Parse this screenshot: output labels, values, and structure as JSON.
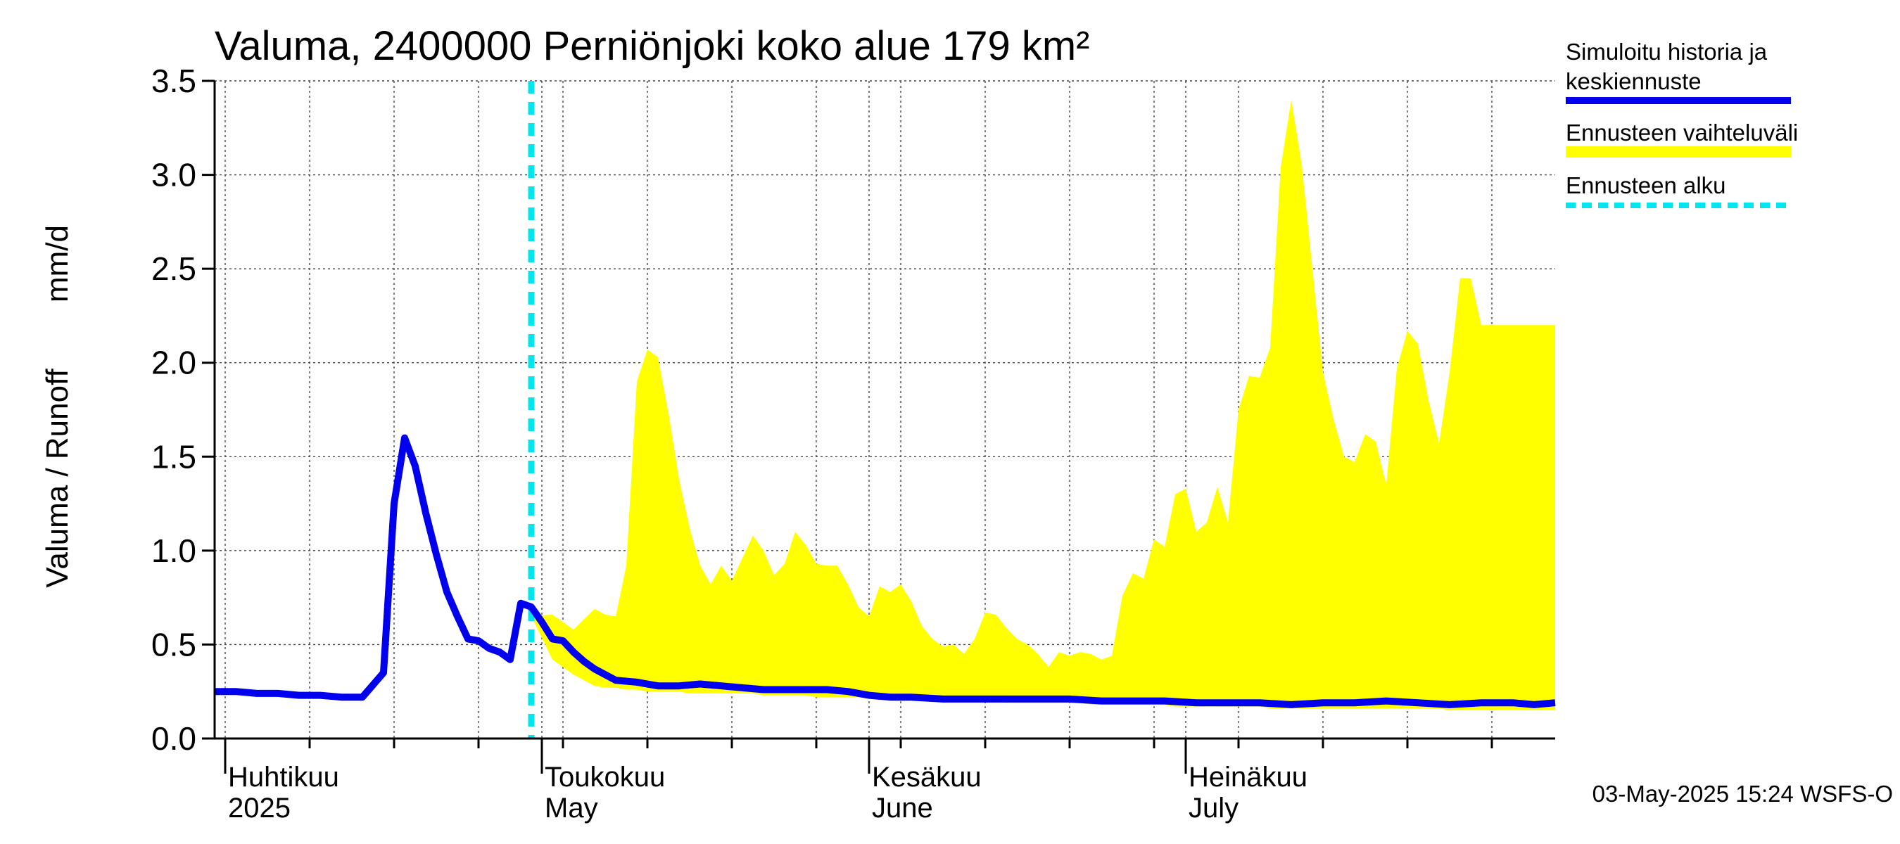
{
  "chart_data": {
    "type": "area",
    "title": "Valuma, 2400000 Perniönjoki koko alue 179 km²",
    "ylabel_left": "Valuma / Runoff",
    "ylabel_unit": "mm/d",
    "ylim": [
      0,
      3.5
    ],
    "yticks": [
      0.0,
      0.5,
      1.0,
      1.5,
      2.0,
      2.5,
      3.0,
      3.5
    ],
    "ytick_labels": [
      "0.0",
      "0.5",
      "1.0",
      "1.5",
      "2.0",
      "2.5",
      "3.0",
      "3.5"
    ],
    "xlim": [
      "2025-03-31",
      "2025-08-05"
    ],
    "grid": true,
    "month_labels": [
      {
        "date": "2025-04-01",
        "fi": "Huhtikuu",
        "en": "2025"
      },
      {
        "date": "2025-05-01",
        "fi": "Toukokuu",
        "en": "May"
      },
      {
        "date": "2025-06-01",
        "fi": "Kesäkuu",
        "en": "June"
      },
      {
        "date": "2025-07-01",
        "fi": "Heinäkuu",
        "en": "July"
      }
    ],
    "forecast_start": "2025-04-30",
    "series": [
      {
        "name": "Simuloitu historia ja keskiennuste",
        "color": "#0000ee",
        "x": [
          "2025-03-31",
          "2025-04-02",
          "2025-04-04",
          "2025-04-06",
          "2025-04-08",
          "2025-04-10",
          "2025-04-12",
          "2025-04-14",
          "2025-04-16",
          "2025-04-17",
          "2025-04-18",
          "2025-04-19",
          "2025-04-20",
          "2025-04-21",
          "2025-04-22",
          "2025-04-23",
          "2025-04-24",
          "2025-04-25",
          "2025-04-26",
          "2025-04-27",
          "2025-04-28",
          "2025-04-29",
          "2025-04-30",
          "2025-05-01",
          "2025-05-02",
          "2025-05-03",
          "2025-05-04",
          "2025-05-05",
          "2025-05-06",
          "2025-05-08",
          "2025-05-10",
          "2025-05-12",
          "2025-05-14",
          "2025-05-16",
          "2025-05-18",
          "2025-05-20",
          "2025-05-22",
          "2025-05-24",
          "2025-05-26",
          "2025-05-28",
          "2025-05-30",
          "2025-06-01",
          "2025-06-03",
          "2025-06-05",
          "2025-06-08",
          "2025-06-11",
          "2025-06-14",
          "2025-06-17",
          "2025-06-20",
          "2025-06-23",
          "2025-06-26",
          "2025-06-29",
          "2025-07-02",
          "2025-07-05",
          "2025-07-08",
          "2025-07-11",
          "2025-07-14",
          "2025-07-17",
          "2025-07-20",
          "2025-07-23",
          "2025-07-26",
          "2025-07-29",
          "2025-08-01",
          "2025-08-03",
          "2025-08-05"
        ],
        "values": [
          0.25,
          0.25,
          0.24,
          0.24,
          0.23,
          0.23,
          0.22,
          0.22,
          0.35,
          1.25,
          1.6,
          1.45,
          1.2,
          0.98,
          0.78,
          0.65,
          0.53,
          0.52,
          0.48,
          0.46,
          0.42,
          0.72,
          0.7,
          0.62,
          0.53,
          0.52,
          0.46,
          0.41,
          0.37,
          0.31,
          0.3,
          0.28,
          0.28,
          0.29,
          0.28,
          0.27,
          0.26,
          0.26,
          0.26,
          0.26,
          0.25,
          0.23,
          0.22,
          0.22,
          0.21,
          0.21,
          0.21,
          0.21,
          0.21,
          0.2,
          0.2,
          0.2,
          0.19,
          0.19,
          0.19,
          0.18,
          0.19,
          0.19,
          0.2,
          0.19,
          0.18,
          0.19,
          0.19,
          0.18,
          0.19
        ]
      },
      {
        "name": "Ennusteen vaihteluväli",
        "color": "#ffff00",
        "x": [
          "2025-04-30",
          "2025-05-02",
          "2025-05-04",
          "2025-05-06",
          "2025-05-07",
          "2025-05-08",
          "2025-05-09",
          "2025-05-10",
          "2025-05-11",
          "2025-05-12",
          "2025-05-13",
          "2025-05-14",
          "2025-05-15",
          "2025-05-16",
          "2025-05-17",
          "2025-05-18",
          "2025-05-19",
          "2025-05-20",
          "2025-05-21",
          "2025-05-22",
          "2025-05-23",
          "2025-05-24",
          "2025-05-25",
          "2025-05-26",
          "2025-05-27",
          "2025-05-28",
          "2025-05-29",
          "2025-05-30",
          "2025-05-31",
          "2025-06-01",
          "2025-06-02",
          "2025-06-03",
          "2025-06-04",
          "2025-06-05",
          "2025-06-06",
          "2025-06-07",
          "2025-06-08",
          "2025-06-09",
          "2025-06-10",
          "2025-06-11",
          "2025-06-12",
          "2025-06-13",
          "2025-06-14",
          "2025-06-15",
          "2025-06-16",
          "2025-06-17",
          "2025-06-18",
          "2025-06-19",
          "2025-06-20",
          "2025-06-21",
          "2025-06-22",
          "2025-06-23",
          "2025-06-24",
          "2025-06-25",
          "2025-06-26",
          "2025-06-27",
          "2025-06-28",
          "2025-06-29",
          "2025-06-30",
          "2025-07-01",
          "2025-07-02",
          "2025-07-03",
          "2025-07-04",
          "2025-07-05",
          "2025-07-06",
          "2025-07-07",
          "2025-07-08",
          "2025-07-09",
          "2025-07-10",
          "2025-07-11",
          "2025-07-12",
          "2025-07-13",
          "2025-07-14",
          "2025-07-15",
          "2025-07-16",
          "2025-07-17",
          "2025-07-18",
          "2025-07-19",
          "2025-07-20",
          "2025-07-21",
          "2025-07-22",
          "2025-07-23",
          "2025-07-24",
          "2025-07-25",
          "2025-07-26",
          "2025-07-27",
          "2025-07-28",
          "2025-07-29",
          "2025-07-30",
          "2025-07-31",
          "2025-08-01",
          "2025-08-02",
          "2025-08-03",
          "2025-08-04",
          "2025-08-05"
        ],
        "upper": [
          0.65,
          0.66,
          0.58,
          0.69,
          0.66,
          0.65,
          0.92,
          1.9,
          2.07,
          2.03,
          1.73,
          1.38,
          1.12,
          0.92,
          0.82,
          0.92,
          0.84,
          0.96,
          1.08,
          1.0,
          0.87,
          0.93,
          1.1,
          1.03,
          0.93,
          0.92,
          0.92,
          0.82,
          0.7,
          0.65,
          0.81,
          0.78,
          0.82,
          0.73,
          0.6,
          0.53,
          0.49,
          0.5,
          0.45,
          0.53,
          0.67,
          0.66,
          0.59,
          0.53,
          0.5,
          0.45,
          0.38,
          0.46,
          0.44,
          0.46,
          0.45,
          0.42,
          0.44,
          0.76,
          0.88,
          0.85,
          1.06,
          1.02,
          1.3,
          1.33,
          1.1,
          1.15,
          1.34,
          1.15,
          1.75,
          1.93,
          1.92,
          2.08,
          3.04,
          3.4,
          3.05,
          2.5,
          1.95,
          1.7,
          1.5,
          1.47,
          1.62,
          1.58,
          1.35,
          1.97,
          2.17,
          2.1,
          1.8,
          1.57,
          1.95,
          2.45,
          2.45,
          2.2,
          2.2,
          2.2,
          2.2,
          2.2,
          2.2,
          2.2,
          2.2
        ],
        "lower": [
          0.65,
          0.42,
          0.34,
          0.28,
          0.27,
          0.27,
          0.26,
          0.26,
          0.25,
          0.25,
          0.25,
          0.25,
          0.24,
          0.24,
          0.24,
          0.24,
          0.24,
          0.24,
          0.24,
          0.23,
          0.23,
          0.23,
          0.23,
          0.23,
          0.22,
          0.22,
          0.22,
          0.22,
          0.22,
          0.22,
          0.21,
          0.21,
          0.21,
          0.21,
          0.21,
          0.2,
          0.2,
          0.2,
          0.2,
          0.2,
          0.2,
          0.2,
          0.19,
          0.19,
          0.19,
          0.19,
          0.19,
          0.19,
          0.19,
          0.19,
          0.18,
          0.18,
          0.18,
          0.18,
          0.18,
          0.18,
          0.18,
          0.18,
          0.17,
          0.17,
          0.17,
          0.17,
          0.17,
          0.17,
          0.17,
          0.17,
          0.17,
          0.16,
          0.16,
          0.16,
          0.16,
          0.16,
          0.16,
          0.16,
          0.16,
          0.16,
          0.16,
          0.16,
          0.16,
          0.16,
          0.16,
          0.16,
          0.16,
          0.16,
          0.15,
          0.15,
          0.15,
          0.15,
          0.15,
          0.15,
          0.15,
          0.15,
          0.15,
          0.15,
          0.15
        ]
      },
      {
        "name": "Ennusteen alku",
        "color": "#00e5ee"
      }
    ],
    "timestamp": "03-May-2025 15:24 WSFS-O"
  }
}
